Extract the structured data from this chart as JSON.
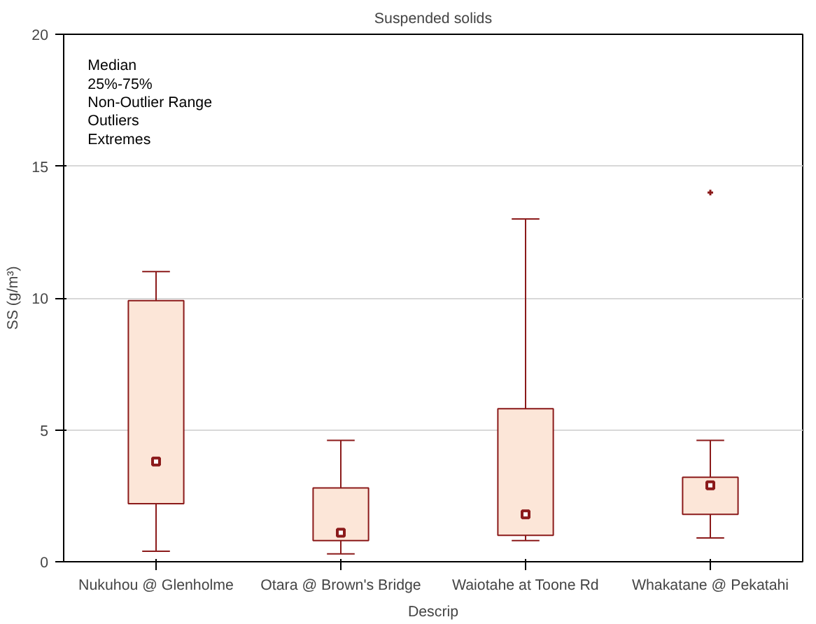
{
  "chart_data": {
    "type": "box",
    "title": "Suspended solids",
    "xlabel": "Descrip",
    "ylabel": "SS (g/m³)",
    "categories": [
      "Nukuhou @ Glenholme",
      "Otara @ Brown's Bridge",
      "Waiotahe at Toone Rd",
      "Whakatane @ Pekatahi"
    ],
    "series": [
      {
        "color": "#8b1a1a",
        "boxes": [
          {
            "low": 0.4,
            "q1": 2.2,
            "median": 3.8,
            "q3": 9.9,
            "high": 11
          },
          {
            "low": 0.3,
            "q1": 0.8,
            "median": 1.1,
            "q3": 2.8,
            "high": 4.6
          },
          {
            "low": 0.8,
            "q1": 1.0,
            "median": 1.8,
            "q3": 5.8,
            "high": 13
          },
          {
            "low": 0.9,
            "q1": 1.8,
            "median": 2.9,
            "q3": 3.2,
            "high": 4.6,
            "outliers": [
              14
            ]
          }
        ]
      }
    ],
    "annotations": [
      "Median",
      "25%-75%",
      "Non-Outlier Range",
      "Outliers",
      "Extremes"
    ],
    "ylim": [
      0,
      20
    ],
    "yticks": [
      0,
      5,
      10,
      15,
      20
    ],
    "grid": "y"
  }
}
